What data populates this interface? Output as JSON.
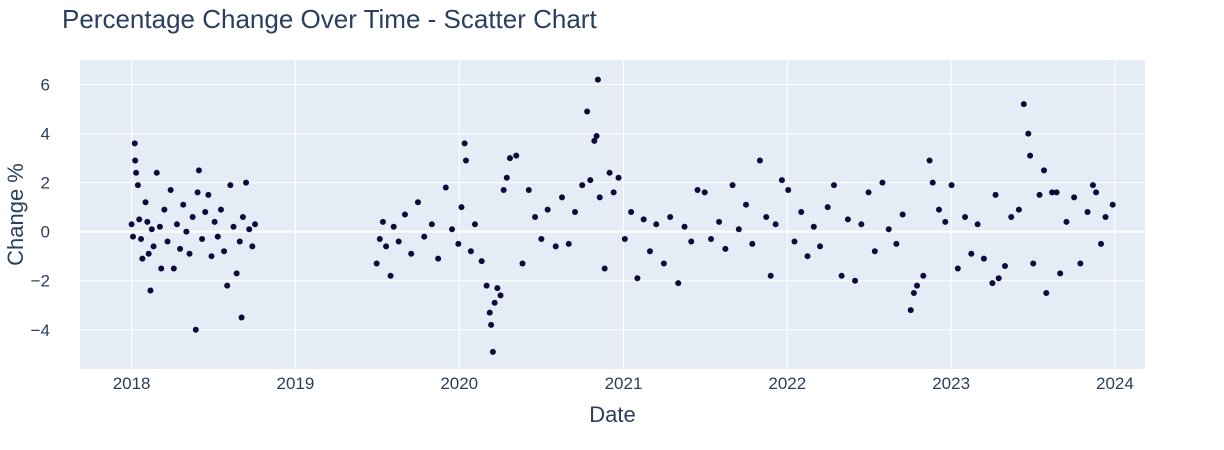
{
  "chart_data": {
    "type": "scatter",
    "title": "Percentage Change Over Time - Scatter Chart",
    "xlabel": "Date",
    "ylabel": "Change %",
    "xlim": [
      "2017-09-08",
      "2024-03-08"
    ],
    "ylim": [
      -5.6,
      7.0
    ],
    "x_ticks": [
      "2018",
      "2019",
      "2020",
      "2021",
      "2022",
      "2023",
      "2024"
    ],
    "y_ticks": [
      "−4",
      "−2",
      "0",
      "2",
      "4",
      "6"
    ],
    "x_tick_values": [
      "2018-01-01",
      "2019-01-01",
      "2020-01-01",
      "2021-01-01",
      "2022-01-01",
      "2023-01-01",
      "2024-01-01"
    ],
    "y_tick_values": [
      -4,
      -2,
      0,
      2,
      4,
      6
    ],
    "grid": true,
    "colors": {
      "marker": "#0d0a3b",
      "plot_bg": "#E5ECF6",
      "grid": "#ffffff",
      "text": "#2a3f5f"
    },
    "series": [
      {
        "points": [
          [
            "2018-01-01",
            0.3
          ],
          [
            "2018-01-04",
            -0.2
          ],
          [
            "2018-01-08",
            3.6
          ],
          [
            "2018-01-09",
            2.9
          ],
          [
            "2018-01-11",
            2.4
          ],
          [
            "2018-01-15",
            1.9
          ],
          [
            "2018-01-18",
            0.5
          ],
          [
            "2018-01-22",
            -0.3
          ],
          [
            "2018-01-25",
            -1.1
          ],
          [
            "2018-02-01",
            1.2
          ],
          [
            "2018-02-05",
            0.4
          ],
          [
            "2018-02-08",
            -0.9
          ],
          [
            "2018-02-12",
            -2.4
          ],
          [
            "2018-02-15",
            0.1
          ],
          [
            "2018-02-19",
            -0.6
          ],
          [
            "2018-02-26",
            2.4
          ],
          [
            "2018-03-05",
            0.2
          ],
          [
            "2018-03-08",
            -1.5
          ],
          [
            "2018-03-15",
            0.9
          ],
          [
            "2018-03-22",
            -0.4
          ],
          [
            "2018-03-29",
            1.7
          ],
          [
            "2018-04-05",
            -1.5
          ],
          [
            "2018-04-12",
            0.3
          ],
          [
            "2018-04-19",
            -0.7
          ],
          [
            "2018-04-26",
            1.1
          ],
          [
            "2018-05-03",
            0.0
          ],
          [
            "2018-05-10",
            -0.9
          ],
          [
            "2018-05-17",
            0.6
          ],
          [
            "2018-05-24",
            -4.0
          ],
          [
            "2018-05-28",
            1.6
          ],
          [
            "2018-05-31",
            2.5
          ],
          [
            "2018-06-07",
            -0.3
          ],
          [
            "2018-06-14",
            0.8
          ],
          [
            "2018-06-21",
            1.5
          ],
          [
            "2018-06-28",
            -1.0
          ],
          [
            "2018-07-05",
            0.4
          ],
          [
            "2018-07-12",
            -0.2
          ],
          [
            "2018-07-19",
            0.9
          ],
          [
            "2018-07-26",
            -0.8
          ],
          [
            "2018-08-02",
            -2.2
          ],
          [
            "2018-08-09",
            1.9
          ],
          [
            "2018-08-16",
            0.2
          ],
          [
            "2018-08-23",
            -1.7
          ],
          [
            "2018-08-30",
            -0.4
          ],
          [
            "2018-09-03",
            -3.5
          ],
          [
            "2018-09-06",
            0.6
          ],
          [
            "2018-09-13",
            2.0
          ],
          [
            "2018-09-20",
            0.1
          ],
          [
            "2018-09-27",
            -0.6
          ],
          [
            "2018-10-03",
            0.3
          ],
          [
            "2019-07-01",
            -1.3
          ],
          [
            "2019-07-08",
            -0.3
          ],
          [
            "2019-07-15",
            0.4
          ],
          [
            "2019-07-22",
            -0.6
          ],
          [
            "2019-08-01",
            -1.8
          ],
          [
            "2019-08-08",
            0.2
          ],
          [
            "2019-08-19",
            -0.4
          ],
          [
            "2019-09-02",
            0.7
          ],
          [
            "2019-09-16",
            -0.9
          ],
          [
            "2019-10-01",
            1.2
          ],
          [
            "2019-10-15",
            -0.2
          ],
          [
            "2019-11-01",
            0.3
          ],
          [
            "2019-11-15",
            -1.1
          ],
          [
            "2019-12-02",
            1.8
          ],
          [
            "2019-12-16",
            0.1
          ],
          [
            "2019-12-30",
            -0.5
          ],
          [
            "2020-01-06",
            1.0
          ],
          [
            "2020-01-13",
            3.6
          ],
          [
            "2020-01-16",
            2.9
          ],
          [
            "2020-01-27",
            -0.8
          ],
          [
            "2020-02-05",
            0.3
          ],
          [
            "2020-02-20",
            -1.2
          ],
          [
            "2020-03-02",
            -2.2
          ],
          [
            "2020-03-09",
            -3.3
          ],
          [
            "2020-03-12",
            -3.8
          ],
          [
            "2020-03-16",
            -4.9
          ],
          [
            "2020-03-20",
            -2.9
          ],
          [
            "2020-03-26",
            -2.3
          ],
          [
            "2020-04-02",
            -2.6
          ],
          [
            "2020-04-09",
            1.7
          ],
          [
            "2020-04-16",
            2.2
          ],
          [
            "2020-04-23",
            3.0
          ],
          [
            "2020-05-07",
            3.1
          ],
          [
            "2020-05-21",
            -1.3
          ],
          [
            "2020-06-04",
            1.7
          ],
          [
            "2020-06-18",
            0.6
          ],
          [
            "2020-07-02",
            -0.3
          ],
          [
            "2020-07-16",
            0.9
          ],
          [
            "2020-08-03",
            -0.6
          ],
          [
            "2020-08-17",
            1.4
          ],
          [
            "2020-09-01",
            -0.5
          ],
          [
            "2020-09-15",
            0.8
          ],
          [
            "2020-10-01",
            1.9
          ],
          [
            "2020-10-12",
            4.9
          ],
          [
            "2020-10-19",
            2.1
          ],
          [
            "2020-10-28",
            3.7
          ],
          [
            "2020-11-02",
            3.9
          ],
          [
            "2020-11-05",
            6.2
          ],
          [
            "2020-11-09",
            1.4
          ],
          [
            "2020-11-20",
            -1.5
          ],
          [
            "2020-12-01",
            2.4
          ],
          [
            "2020-12-10",
            1.6
          ],
          [
            "2020-12-21",
            2.2
          ],
          [
            "2021-01-04",
            -0.3
          ],
          [
            "2021-01-18",
            0.8
          ],
          [
            "2021-02-01",
            -1.9
          ],
          [
            "2021-02-15",
            0.5
          ],
          [
            "2021-03-01",
            -0.8
          ],
          [
            "2021-03-15",
            0.3
          ],
          [
            "2021-04-01",
            -1.3
          ],
          [
            "2021-04-15",
            0.6
          ],
          [
            "2021-05-03",
            -2.1
          ],
          [
            "2021-05-17",
            0.2
          ],
          [
            "2021-06-01",
            -0.4
          ],
          [
            "2021-06-15",
            1.7
          ],
          [
            "2021-07-01",
            1.6
          ],
          [
            "2021-07-15",
            -0.3
          ],
          [
            "2021-08-02",
            0.4
          ],
          [
            "2021-08-16",
            -0.7
          ],
          [
            "2021-09-01",
            1.9
          ],
          [
            "2021-09-15",
            0.1
          ],
          [
            "2021-10-01",
            1.1
          ],
          [
            "2021-10-15",
            -0.5
          ],
          [
            "2021-11-01",
            2.9
          ],
          [
            "2021-11-15",
            0.6
          ],
          [
            "2021-11-25",
            -1.8
          ],
          [
            "2021-12-06",
            0.3
          ],
          [
            "2021-12-20",
            2.1
          ],
          [
            "2022-01-03",
            1.7
          ],
          [
            "2022-01-17",
            -0.4
          ],
          [
            "2022-02-01",
            0.8
          ],
          [
            "2022-02-15",
            -1.0
          ],
          [
            "2022-03-01",
            0.2
          ],
          [
            "2022-03-15",
            -0.6
          ],
          [
            "2022-04-01",
            1.0
          ],
          [
            "2022-04-15",
            1.9
          ],
          [
            "2022-05-02",
            -1.8
          ],
          [
            "2022-05-16",
            0.5
          ],
          [
            "2022-06-01",
            -2.0
          ],
          [
            "2022-06-15",
            0.3
          ],
          [
            "2022-07-01",
            1.6
          ],
          [
            "2022-07-15",
            -0.8
          ],
          [
            "2022-08-01",
            2.0
          ],
          [
            "2022-08-15",
            0.1
          ],
          [
            "2022-09-01",
            -0.5
          ],
          [
            "2022-09-15",
            0.7
          ],
          [
            "2022-10-03",
            -3.2
          ],
          [
            "2022-10-10",
            -2.5
          ],
          [
            "2022-10-17",
            -2.2
          ],
          [
            "2022-10-31",
            -1.8
          ],
          [
            "2022-11-14",
            2.9
          ],
          [
            "2022-11-21",
            2.0
          ],
          [
            "2022-12-05",
            0.9
          ],
          [
            "2022-12-19",
            0.4
          ],
          [
            "2023-01-02",
            1.9
          ],
          [
            "2023-01-16",
            -1.5
          ],
          [
            "2023-02-01",
            0.6
          ],
          [
            "2023-02-15",
            -0.9
          ],
          [
            "2023-03-01",
            0.3
          ],
          [
            "2023-03-15",
            -1.1
          ],
          [
            "2023-04-03",
            -2.1
          ],
          [
            "2023-04-10",
            1.5
          ],
          [
            "2023-04-17",
            -1.9
          ],
          [
            "2023-05-01",
            -1.4
          ],
          [
            "2023-05-15",
            0.6
          ],
          [
            "2023-06-01",
            0.9
          ],
          [
            "2023-06-12",
            5.2
          ],
          [
            "2023-06-22",
            4.0
          ],
          [
            "2023-06-26",
            3.1
          ],
          [
            "2023-07-03",
            -1.3
          ],
          [
            "2023-07-17",
            1.5
          ],
          [
            "2023-07-27",
            2.5
          ],
          [
            "2023-08-01",
            -2.5
          ],
          [
            "2023-08-14",
            1.6
          ],
          [
            "2023-08-24",
            1.6
          ],
          [
            "2023-09-01",
            -1.7
          ],
          [
            "2023-09-15",
            0.4
          ],
          [
            "2023-10-02",
            1.4
          ],
          [
            "2023-10-16",
            -1.3
          ],
          [
            "2023-11-01",
            0.8
          ],
          [
            "2023-11-13",
            1.9
          ],
          [
            "2023-11-20",
            1.6
          ],
          [
            "2023-12-01",
            -0.5
          ],
          [
            "2023-12-11",
            0.6
          ],
          [
            "2023-12-27",
            1.1
          ]
        ]
      }
    ]
  }
}
